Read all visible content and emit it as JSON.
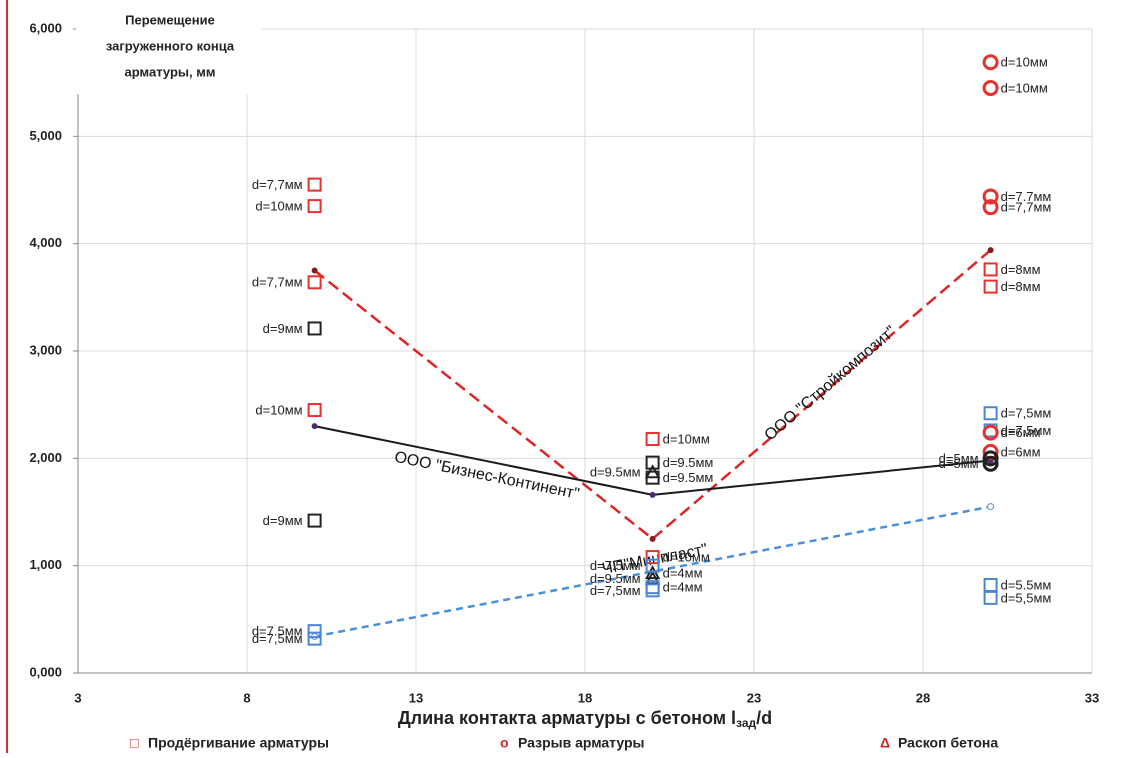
{
  "chart_data": {
    "type": "scatter",
    "ylabel": [
      "Перемещение",
      "загруженного конца",
      "арматуры, мм"
    ],
    "xlabel": [
      "Длина контакта арматуры с бетоном l",
      "зад",
      "/d"
    ],
    "xlim": [
      3,
      33
    ],
    "xticks": [
      3,
      8,
      13,
      18,
      23,
      28,
      33
    ],
    "ylim": [
      0,
      6
    ],
    "yticks": [
      {
        "value": 0,
        "label": "0,000"
      },
      {
        "value": 1,
        "label": "1,000"
      },
      {
        "value": 2,
        "label": "2,000"
      },
      {
        "value": 3,
        "label": "3,000"
      },
      {
        "value": 4,
        "label": "4,000"
      },
      {
        "value": 5,
        "label": "5,000"
      },
      {
        "value": 6,
        "label": "6,000"
      }
    ],
    "grid": true,
    "legend_color": "#c62828",
    "legend": [
      {
        "symbol": "□",
        "label": "Продёргивание арматуры"
      },
      {
        "symbol": "o",
        "label": "Разрыв арматуры"
      },
      {
        "symbol": "Δ",
        "label": "Раскоп бетона"
      }
    ],
    "series": [
      {
        "name": "ООО \"Стройкомпозит\"",
        "line": "dashed",
        "color": "#e02424",
        "marker": "dot",
        "marker_color": "#8b1a1a",
        "x": [
          10,
          20,
          30
        ],
        "values": [
          3.75,
          1.25,
          3.94
        ]
      },
      {
        "name": "ООО \"Бизнес-Континент\"",
        "line": "solid",
        "color": "#1a1a1a",
        "marker": "dot",
        "marker_color": "#4b2e6b",
        "x": [
          10,
          20,
          30
        ],
        "values": [
          2.3,
          1.66,
          1.98
        ]
      },
      {
        "name": "ЧП\"Минпласт\"",
        "line": "dashed",
        "color": "#4a90d9",
        "marker": "open-dot",
        "marker_color": "#7a9cc0",
        "x": [
          10,
          30
        ],
        "values": [
          0.34,
          1.55
        ]
      },
      {
        "marker": "square",
        "color": "#e8312f",
        "label_side": "left",
        "x": [
          10,
          10,
          10,
          10
        ],
        "values": [
          4.55,
          4.35,
          3.64,
          2.45
        ],
        "labels": [
          "d=7,7мм",
          "d=10мм",
          "d=7,7мм",
          "d=10мм"
        ]
      },
      {
        "marker": "square",
        "color": "#e8312f",
        "label_side": "right",
        "x": [
          20,
          20,
          30,
          30
        ],
        "values": [
          2.18,
          1.08,
          3.76,
          3.6
        ],
        "labels": [
          "d=10мм",
          "d=10мм",
          "d=8мм",
          "d=8мм"
        ]
      },
      {
        "marker": "square",
        "color": "#222222",
        "label_side": "left",
        "x": [
          10,
          10
        ],
        "values": [
          3.21,
          1.42
        ],
        "labels": [
          "d=9мм",
          "d=9мм"
        ]
      },
      {
        "marker": "square",
        "color": "#222222",
        "label_side": "right",
        "x": [
          20,
          20
        ],
        "values": [
          1.96,
          1.82
        ],
        "labels": [
          "d=9.5мм",
          "d=9.5мм"
        ]
      },
      {
        "marker": "triangle",
        "color": "#222222",
        "label_side": "left",
        "x": [
          20,
          20
        ],
        "values": [
          1.87,
          0.88
        ],
        "labels": [
          "d=9.5мм",
          "d=9.5мм"
        ]
      },
      {
        "marker": "triangle",
        "color": "#222222",
        "label_side": "right",
        "x": [
          20
        ],
        "values": [
          0.93
        ],
        "labels": [
          "d=4мм"
        ]
      },
      {
        "marker": "square",
        "color": "#4a86d8",
        "label_side": "left",
        "x": [
          10,
          10,
          20,
          20
        ],
        "values": [
          0.39,
          0.32,
          1.0,
          0.77
        ],
        "labels": [
          "d=7.5мм",
          "d=7,5мм",
          "d=7.5мм",
          "d=7,5мм"
        ]
      },
      {
        "marker": "square",
        "color": "#4a86d8",
        "label_side": "right",
        "x": [
          20,
          30,
          30,
          30,
          30
        ],
        "values": [
          0.8,
          2.42,
          2.26,
          0.82,
          0.7
        ],
        "labels": [
          "d=4мм",
          "d=7,5мм",
          "d=7,5мм",
          "d=5.5мм",
          "d=5,5мм"
        ]
      },
      {
        "marker": "circle",
        "color": "#e8312f",
        "label_side": "right",
        "x": [
          30,
          30,
          30,
          30,
          30,
          30
        ],
        "values": [
          5.69,
          5.45,
          4.44,
          4.34,
          2.24,
          2.06
        ],
        "labels": [
          "d=10мм",
          "d=10мм",
          "d=7.7мм",
          "d=7,7мм",
          "d=6мм",
          "d=6мм"
        ]
      },
      {
        "marker": "circle",
        "color": "#222222",
        "label_side": "left",
        "x": [
          30,
          30
        ],
        "values": [
          2.0,
          1.95
        ],
        "labels": [
          "d=5мм",
          "d=5мм"
        ]
      }
    ]
  }
}
